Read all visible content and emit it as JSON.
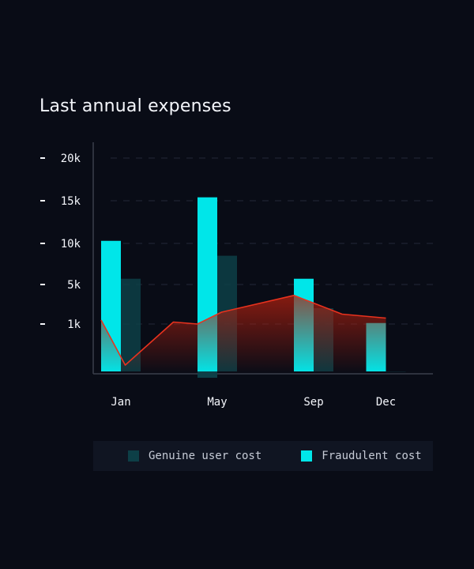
{
  "chart_data": {
    "type": "bar",
    "title": "Last annual expenses",
    "y_ticks": [
      "20k",
      "15k",
      "10k",
      "5k",
      "1k"
    ],
    "y_tick_values": [
      20000,
      15000,
      10000,
      5000,
      1000
    ],
    "x_labels": [
      {
        "label": "Jan",
        "month": 1
      },
      {
        "label": "May",
        "month": 5
      },
      {
        "label": "Sep",
        "month": 9
      },
      {
        "label": "Dec",
        "month": 12
      }
    ],
    "grid": true,
    "legend_position": "bottom",
    "series": [
      {
        "name": "Fraudulent cost",
        "kind": "bar",
        "color": "#00e6e9",
        "points": [
          {
            "month": 1,
            "value": 10300
          },
          {
            "month": 5,
            "value": 15400
          },
          {
            "month": 9,
            "value": 5700
          },
          {
            "month": 12,
            "value": 1100
          }
        ]
      },
      {
        "name": "Genuine user cost",
        "kind": "bar",
        "color": "#0d3f47",
        "points": [
          {
            "month": 1,
            "value": 5700
          },
          {
            "month": 5,
            "value": 8500
          },
          {
            "month": 9,
            "value": 2600
          },
          {
            "month": 12,
            "value": -700
          }
        ]
      },
      {
        "kind": "area-line",
        "color": "#e8321e",
        "points": [
          {
            "month": 1,
            "value": 1400
          },
          {
            "month": 2,
            "value": 0
          },
          {
            "month": 4,
            "value": 1200
          },
          {
            "month": 5,
            "value": 1000
          },
          {
            "month": 6,
            "value": 2200
          },
          {
            "month": 9,
            "value": 3900
          },
          {
            "month": 11,
            "value": 2000
          },
          {
            "month": 12,
            "value": 1600
          }
        ]
      }
    ]
  },
  "legend": {
    "items": [
      {
        "label": "Genuine user cost",
        "color": "#0d3f47"
      },
      {
        "label": "Fraudulent cost",
        "color": "#00e6e9"
      }
    ]
  }
}
